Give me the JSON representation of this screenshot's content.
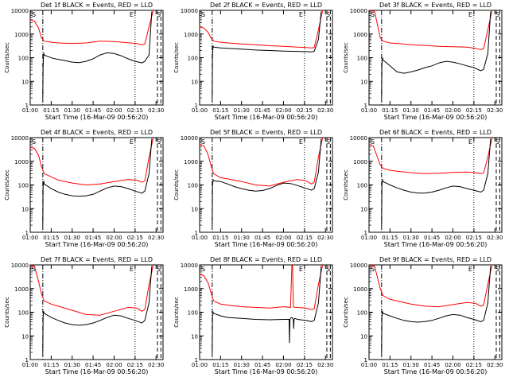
{
  "chart_data": {
    "type": "line",
    "shared": {
      "ylabel": "Counts/sec",
      "xlabel": "Start Time (16-Mar-09 00:56:20)",
      "x_ticks": [
        "01:00",
        "01:15",
        "01:30",
        "01:45",
        "02:00",
        "02:15",
        "02:30"
      ],
      "x_tick_minutes": [
        0,
        15,
        30,
        45,
        60,
        75,
        90
      ],
      "xlim_minutes": [
        0,
        95
      ],
      "y_ticks": [
        "1",
        "10",
        "100",
        "1000",
        "10000"
      ],
      "y_tick_values": [
        1,
        10,
        100,
        1000,
        10000
      ],
      "ylim": [
        1,
        10000
      ],
      "yscale": "log",
      "series_colors": {
        "events": "#000000",
        "lld": "#ff0000"
      },
      "corner_markers": {
        "left": "S",
        "right_1": "E",
        "right_2": "S"
      },
      "vertical_markers": [
        {
          "minute": 9,
          "style": "dash-dot"
        },
        {
          "minute": 75,
          "style": "dotted"
        },
        {
          "minute": 91,
          "style": "dashed"
        },
        {
          "minute": 93.5,
          "style": "dashed"
        }
      ]
    },
    "charts": [
      {
        "title": "Det 1f BLACK = Events, RED = LLD",
        "series": [
          {
            "key": "lld",
            "x": [
              0,
              3,
              6,
              8,
              10,
              15,
              20,
              30,
              40,
              50,
              60,
              70,
              76,
              80,
              82,
              85,
              88
            ],
            "y": [
              4000,
              3500,
              1800,
              700,
              500,
              450,
              420,
              400,
              420,
              500,
              480,
              430,
              400,
              350,
              380,
              2000,
              10000
            ]
          },
          {
            "key": "events",
            "x": [
              9,
              9.2,
              9.6,
              10,
              12,
              16,
              20,
              25,
              30,
              35,
              40,
              45,
              50,
              55,
              60,
              65,
              70,
              75,
              80,
              82,
              85,
              87
            ],
            "y": [
              2,
              40,
              160,
              130,
              115,
              95,
              85,
              75,
              65,
              62,
              70,
              90,
              130,
              160,
              150,
              120,
              90,
              70,
              60,
              70,
              130,
              9000
            ]
          }
        ]
      },
      {
        "title": "Det 2f BLACK = Events, RED = LLD",
        "series": [
          {
            "key": "lld",
            "x": [
              0,
              3,
              6,
              8,
              10,
              15,
              20,
              30,
              40,
              50,
              60,
              70,
              76,
              80,
              82,
              85,
              88
            ],
            "y": [
              2000,
              1800,
              1200,
              700,
              500,
              450,
              420,
              380,
              350,
              320,
              300,
              280,
              270,
              260,
              270,
              1500,
              10000
            ]
          },
          {
            "key": "events",
            "x": [
              9,
              9.2,
              9.6,
              10,
              15,
              20,
              30,
              40,
              50,
              60,
              70,
              76,
              80,
              82,
              85,
              87
            ],
            "y": [
              2,
              120,
              320,
              280,
              260,
              250,
              230,
              210,
              200,
              190,
              185,
              180,
              175,
              185,
              600,
              9000
            ]
          }
        ]
      },
      {
        "title": "Det 3f BLACK = Events, RED = LLD",
        "series": [
          {
            "key": "lld",
            "x": [
              0,
              4,
              8,
              10,
              15,
              20,
              30,
              40,
              50,
              60,
              70,
              76,
              80,
              82,
              85,
              88
            ],
            "y": [
              10000,
              9000,
              700,
              500,
              420,
              400,
              350,
              330,
              300,
              290,
              280,
              250,
              220,
              240,
              1500,
              10000
            ]
          },
          {
            "key": "events",
            "x": [
              9,
              9.2,
              9.6,
              10,
              15,
              20,
              25,
              30,
              35,
              40,
              45,
              50,
              55,
              60,
              65,
              70,
              75,
              80,
              82,
              85,
              87
            ],
            "y": [
              2,
              50,
              100,
              80,
              45,
              25,
              22,
              25,
              30,
              38,
              45,
              60,
              70,
              65,
              55,
              45,
              38,
              28,
              32,
              150,
              9000
            ]
          }
        ]
      },
      {
        "title": "Det 4f BLACK = Events, RED = LLD",
        "series": [
          {
            "key": "lld",
            "x": [
              0,
              3,
              6,
              8,
              10,
              15,
              20,
              30,
              40,
              50,
              60,
              70,
              76,
              80,
              82,
              85,
              88
            ],
            "y": [
              4000,
              3500,
              1800,
              600,
              300,
              220,
              160,
              120,
              100,
              110,
              140,
              170,
              160,
              130,
              150,
              1500,
              10000
            ]
          },
          {
            "key": "events",
            "x": [
              9,
              9.2,
              9.6,
              10,
              15,
              20,
              25,
              30,
              35,
              40,
              45,
              50,
              55,
              60,
              65,
              70,
              75,
              80,
              82,
              85,
              87
            ],
            "y": [
              2,
              80,
              150,
              110,
              70,
              50,
              40,
              35,
              33,
              35,
              40,
              55,
              75,
              90,
              85,
              70,
              55,
              45,
              55,
              300,
              9000
            ]
          }
        ]
      },
      {
        "title": "Det 5f BLACK = Events, RED = LLD",
        "series": [
          {
            "key": "lld",
            "x": [
              0,
              3,
              6,
              8,
              10,
              15,
              20,
              30,
              40,
              50,
              60,
              70,
              76,
              80,
              82,
              85,
              88
            ],
            "y": [
              5000,
              4500,
              2000,
              700,
              300,
              200,
              180,
              140,
              100,
              90,
              130,
              170,
              150,
              110,
              130,
              1500,
              10000
            ]
          },
          {
            "key": "events",
            "x": [
              9,
              9.2,
              9.6,
              10,
              15,
              20,
              25,
              30,
              35,
              40,
              45,
              50,
              55,
              60,
              65,
              70,
              75,
              80,
              82,
              85,
              87
            ],
            "y": [
              2,
              90,
              170,
              150,
              140,
              110,
              85,
              70,
              60,
              55,
              58,
              70,
              95,
              120,
              115,
              95,
              75,
              60,
              70,
              350,
              9000
            ]
          }
        ]
      },
      {
        "title": "Det 6f BLACK = Events, RED = LLD",
        "series": [
          {
            "key": "lld",
            "x": [
              0,
              3,
              6,
              8,
              10,
              15,
              20,
              30,
              40,
              50,
              60,
              70,
              76,
              80,
              82,
              85,
              88
            ],
            "y": [
              5000,
              4500,
              1500,
              700,
              500,
              420,
              380,
              330,
              300,
              310,
              340,
              350,
              330,
              300,
              320,
              1500,
              10000
            ]
          },
          {
            "key": "events",
            "x": [
              9,
              9.2,
              9.6,
              10,
              15,
              20,
              25,
              30,
              35,
              40,
              45,
              50,
              55,
              60,
              65,
              70,
              75,
              80,
              82,
              85,
              87
            ],
            "y": [
              2,
              90,
              170,
              140,
              100,
              75,
              60,
              50,
              45,
              45,
              50,
              60,
              75,
              90,
              85,
              70,
              60,
              50,
              60,
              300,
              9000
            ]
          }
        ]
      },
      {
        "title": "Det 7f BLACK = Events, RED = LLD",
        "series": [
          {
            "key": "lld",
            "x": [
              0,
              3,
              6,
              8,
              10,
              15,
              20,
              30,
              40,
              50,
              60,
              70,
              76,
              80,
              82,
              85,
              88
            ],
            "y": [
              10000,
              9000,
              2000,
              600,
              300,
              220,
              180,
              120,
              80,
              75,
              110,
              160,
              150,
              110,
              130,
              1500,
              10000
            ]
          },
          {
            "key": "events",
            "x": [
              9,
              9.2,
              9.6,
              10,
              15,
              20,
              25,
              30,
              35,
              40,
              45,
              50,
              55,
              60,
              65,
              70,
              75,
              80,
              82,
              85,
              87
            ],
            "y": [
              2,
              60,
              110,
              90,
              60,
              45,
              35,
              30,
              28,
              30,
              35,
              45,
              60,
              75,
              70,
              55,
              45,
              35,
              45,
              250,
              9000
            ]
          }
        ]
      },
      {
        "title": "Det 8f BLACK = Events, RED = LLD",
        "series": [
          {
            "key": "lld",
            "x": [
              0,
              3,
              6,
              8,
              10,
              15,
              20,
              30,
              40,
              50,
              60,
              65,
              66,
              66.5,
              67,
              68,
              70,
              76,
              80,
              82,
              85,
              88
            ],
            "y": [
              4000,
              3500,
              1800,
              700,
              300,
              220,
              200,
              170,
              160,
              150,
              170,
              160,
              10000,
              10000,
              170,
              160,
              160,
              150,
              130,
              140,
              1500,
              10000
            ]
          },
          {
            "key": "events",
            "x": [
              9,
              9.2,
              9.6,
              10,
              15,
              20,
              30,
              40,
              50,
              60,
              64,
              64.3,
              64.6,
              65,
              66,
              67,
              67.3,
              67.6,
              68,
              70,
              76,
              80,
              82,
              85,
              87
            ],
            "y": [
              2,
              60,
              100,
              90,
              70,
              60,
              55,
              50,
              48,
              50,
              50,
              5,
              50,
              55,
              60,
              50,
              20,
              50,
              55,
              50,
              45,
              40,
              45,
              250,
              9000
            ]
          }
        ]
      },
      {
        "title": "Det 9f BLACK = Events, RED = LLD",
        "series": [
          {
            "key": "lld",
            "x": [
              0,
              4,
              8,
              10,
              15,
              20,
              30,
              40,
              50,
              60,
              70,
              76,
              80,
              82,
              85,
              88
            ],
            "y": [
              10000,
              9000,
              1000,
              500,
              350,
              300,
              220,
              180,
              170,
              210,
              260,
              240,
              180,
              200,
              1500,
              10000
            ]
          },
          {
            "key": "events",
            "x": [
              9,
              9.2,
              9.6,
              10,
              15,
              20,
              25,
              30,
              35,
              40,
              45,
              50,
              55,
              60,
              65,
              70,
              75,
              80,
              82,
              85,
              87
            ],
            "y": [
              2,
              60,
              110,
              90,
              70,
              55,
              45,
              40,
              38,
              40,
              45,
              55,
              70,
              80,
              75,
              60,
              50,
              40,
              45,
              250,
              9000
            ]
          }
        ]
      }
    ]
  }
}
